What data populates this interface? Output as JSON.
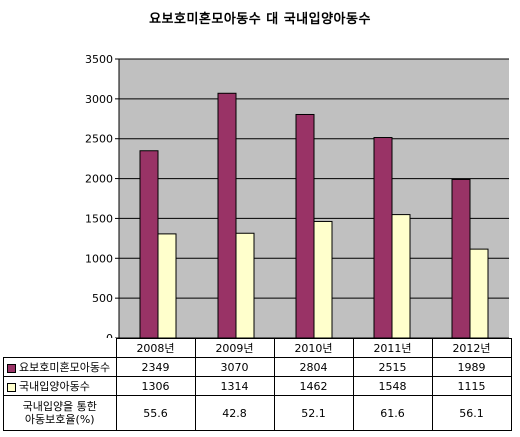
{
  "title": "요보호미혼모아동수 대 국내입양아동수",
  "colors": {
    "series1": "#993366",
    "series2": "#FFFFCC",
    "plot_bg": "#C0C0C0"
  },
  "chart_data": {
    "type": "bar",
    "title": "요보호미혼모아동수 대 국내입양아동수",
    "categories": [
      "2008년",
      "2009년",
      "2010년",
      "2011년",
      "2012년"
    ],
    "series": [
      {
        "name": "요보호미혼모아동수",
        "values": [
          2349,
          3070,
          2804,
          2515,
          1989
        ]
      },
      {
        "name": "국내입양아동수",
        "values": [
          1306,
          1314,
          1462,
          1548,
          1115
        ]
      }
    ],
    "ylim": [
      0,
      3500
    ],
    "yticks": [
      "0",
      "500",
      "1000",
      "1500",
      "2000",
      "2500",
      "3000",
      "3500"
    ],
    "grid": true,
    "legend": "data-table"
  },
  "table": {
    "rows": [
      {
        "label": "요보호미혼모아동수",
        "values": [
          "2349",
          "3070",
          "2804",
          "2515",
          "1989"
        ]
      },
      {
        "label": "국내입양아동수",
        "values": [
          "1306",
          "1314",
          "1462",
          "1548",
          "1115"
        ]
      }
    ],
    "rate_row": {
      "label_line1": "국내입양을 통한",
      "label_line2": "아동보호율(%)",
      "values": [
        "55.6",
        "42.8",
        "52.1",
        "61.6",
        "56.1"
      ]
    }
  }
}
